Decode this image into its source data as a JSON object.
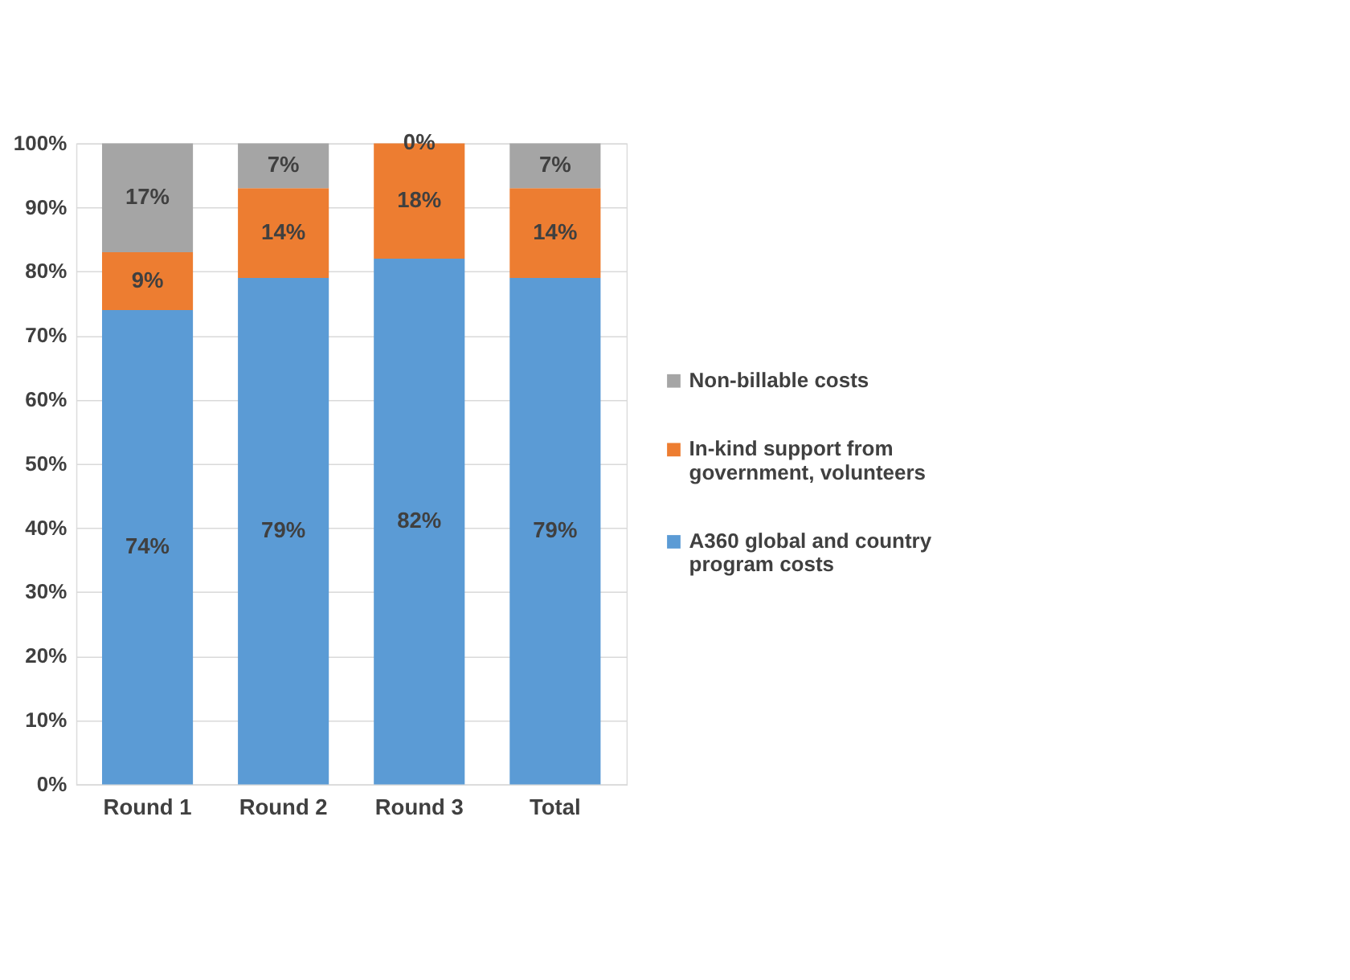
{
  "chart_data": {
    "type": "bar",
    "stacked": true,
    "categories": [
      "Round 1",
      "Round 2",
      "Round 3",
      "Total"
    ],
    "series": [
      {
        "name": "A360 global and country program costs",
        "color": "#5b9bd5",
        "values": [
          74,
          79,
          82,
          79
        ],
        "value_labels": [
          "74%",
          "79%",
          "82%",
          "79%"
        ]
      },
      {
        "name": "In-kind support from government, volunteers",
        "color": "#ed7d31",
        "values": [
          9,
          14,
          18,
          14
        ],
        "value_labels": [
          "9%",
          "14%",
          "18%",
          "14%"
        ]
      },
      {
        "name": "Non-billable costs",
        "color": "#a5a5a5",
        "values": [
          17,
          7,
          0,
          7
        ],
        "value_labels": [
          "17%",
          "7%",
          "0%",
          "7%"
        ]
      }
    ],
    "ylim": [
      0,
      100
    ],
    "yticks": [
      {
        "value": 0,
        "label": "0%"
      },
      {
        "value": 10,
        "label": "10%"
      },
      {
        "value": 20,
        "label": "20%"
      },
      {
        "value": 30,
        "label": "30%"
      },
      {
        "value": 40,
        "label": "40%"
      },
      {
        "value": 50,
        "label": "50%"
      },
      {
        "value": 60,
        "label": "60%"
      },
      {
        "value": 70,
        "label": "70%"
      },
      {
        "value": 80,
        "label": "80%"
      },
      {
        "value": 90,
        "label": "90%"
      },
      {
        "value": 100,
        "label": "100%"
      }
    ],
    "grid": "y",
    "legend": "right"
  }
}
